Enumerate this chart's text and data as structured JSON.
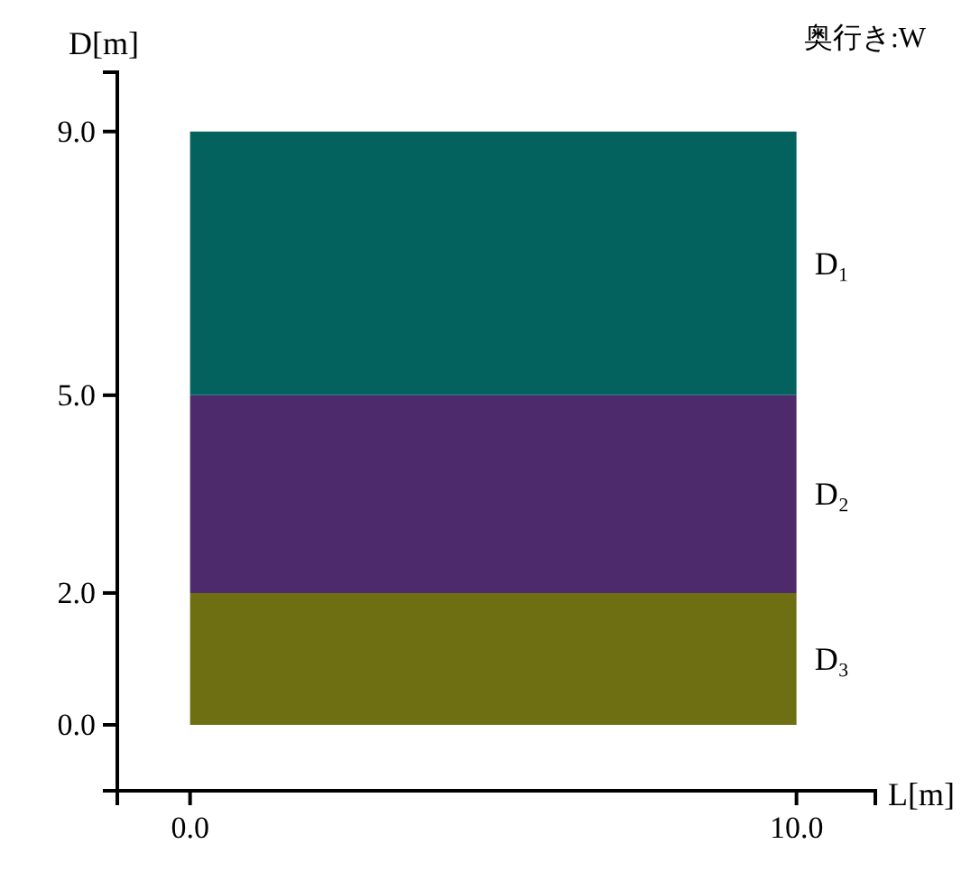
{
  "chart_data": {
    "type": "area",
    "stacked": true,
    "title": "奥行き:W",
    "xlabel": "L[m]",
    "ylabel": "D[m]",
    "xlim": [
      -1.2,
      11.3
    ],
    "ylim": [
      -1.0,
      9.9
    ],
    "xticks": [
      {
        "value": 0,
        "label": "0.0"
      },
      {
        "value": 10,
        "label": "10.0"
      }
    ],
    "yticks": [
      {
        "value": 0,
        "label": "0.0"
      },
      {
        "value": 2,
        "label": "2.0"
      },
      {
        "value": 5,
        "label": "5.0"
      },
      {
        "value": 9,
        "label": "9.0"
      }
    ],
    "x": [
      0,
      10
    ],
    "series": [
      {
        "name": "D₃",
        "color": "#6e6e12",
        "values": [
          2,
          2
        ]
      },
      {
        "name": "D₂",
        "color": "#4d2a6b",
        "values": [
          3,
          3
        ]
      },
      {
        "name": "D₁",
        "color": "#04625e",
        "values": [
          4,
          4
        ]
      }
    ]
  }
}
